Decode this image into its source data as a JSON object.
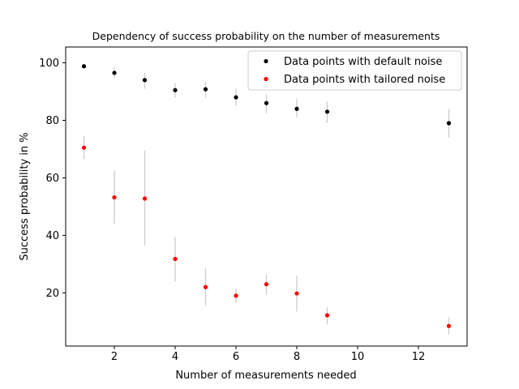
{
  "chart_data": {
    "type": "scatter",
    "title": "Dependency of success probability on the number of measurements",
    "xlabel": "Number of measurements needed",
    "ylabel": "Success probability in %",
    "xlim": [
      0.4,
      13.6
    ],
    "ylim": [
      1.5,
      105.5
    ],
    "xticks": [
      2,
      4,
      6,
      8,
      10,
      12
    ],
    "yticks": [
      20,
      40,
      60,
      80,
      100
    ],
    "grid": false,
    "legend_position": "top-right",
    "errorbar_color": "#cccccc",
    "series": [
      {
        "name": "Data points with default noise",
        "color": "#000000",
        "points": [
          {
            "x": 1,
            "y": 98.8,
            "low": 98.8,
            "high": 98.8
          },
          {
            "x": 2,
            "y": 96.5,
            "low": 94.8,
            "high": 98.5
          },
          {
            "x": 3,
            "y": 94.0,
            "low": 91.0,
            "high": 96.5
          },
          {
            "x": 4,
            "y": 90.5,
            "low": 88.0,
            "high": 93.0
          },
          {
            "x": 5,
            "y": 90.8,
            "low": 87.8,
            "high": 93.5
          },
          {
            "x": 6,
            "y": 88.0,
            "low": 85.0,
            "high": 91.0
          },
          {
            "x": 7,
            "y": 86.0,
            "low": 82.5,
            "high": 89.0
          },
          {
            "x": 8,
            "y": 84.0,
            "low": 81.0,
            "high": 87.5
          },
          {
            "x": 9,
            "y": 83.0,
            "low": 79.0,
            "high": 86.5
          },
          {
            "x": 13,
            "y": 79.0,
            "low": 74.0,
            "high": 84.0
          }
        ]
      },
      {
        "name": "Data points with tailored noise",
        "color": "#ff0000",
        "points": [
          {
            "x": 1,
            "y": 70.5,
            "low": 66.5,
            "high": 74.5
          },
          {
            "x": 2,
            "y": 53.2,
            "low": 44.0,
            "high": 62.5
          },
          {
            "x": 3,
            "y": 52.8,
            "low": 36.5,
            "high": 69.5
          },
          {
            "x": 4,
            "y": 31.8,
            "low": 24.0,
            "high": 39.5
          },
          {
            "x": 5,
            "y": 22.0,
            "low": 15.5,
            "high": 28.5
          },
          {
            "x": 6,
            "y": 19.0,
            "low": 16.5,
            "high": 21.5
          },
          {
            "x": 7,
            "y": 23.0,
            "low": 19.5,
            "high": 26.5
          },
          {
            "x": 8,
            "y": 19.8,
            "low": 13.5,
            "high": 26.0
          },
          {
            "x": 9,
            "y": 12.2,
            "low": 9.0,
            "high": 15.0
          },
          {
            "x": 13,
            "y": 8.5,
            "low": 5.5,
            "high": 11.5
          }
        ]
      }
    ]
  }
}
